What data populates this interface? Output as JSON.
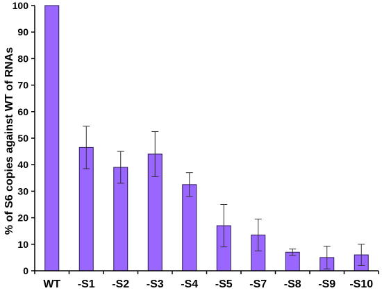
{
  "chart_data": {
    "type": "bar",
    "title": "",
    "xlabel": "",
    "ylabel": "% of S6 copies  against WT of  RNAs",
    "ylim": [
      0,
      100
    ],
    "yticks": [
      0,
      10,
      20,
      30,
      40,
      50,
      60,
      70,
      80,
      90,
      100
    ],
    "grid": false,
    "legend": "none",
    "bar_color": "#9966ff",
    "bar_edge_color": "#2b1a55",
    "categories": [
      "WT",
      "-S1",
      "-S2",
      "-S3",
      "-S4",
      "-S5",
      "-S7",
      "-S8",
      "-S9",
      "-S10"
    ],
    "values": [
      100,
      46.5,
      39,
      44,
      32.5,
      17,
      13.5,
      7,
      5,
      6
    ],
    "errors": [
      0,
      8,
      6,
      8.5,
      4.5,
      8,
      6,
      1.2,
      4.3,
      4
    ]
  }
}
